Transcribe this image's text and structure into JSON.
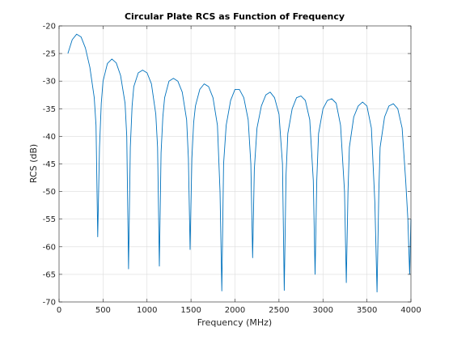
{
  "chart_data": {
    "type": "line",
    "title": "Circular Plate RCS as Function of Frequency",
    "xlabel": "Frequency (MHz)",
    "ylabel": "RCS (dB)",
    "xlim": [
      0,
      4000
    ],
    "ylim": [
      -70,
      -20
    ],
    "xticks": [
      0,
      500,
      1000,
      1500,
      2000,
      2500,
      3000,
      3500,
      4000
    ],
    "yticks": [
      -20,
      -25,
      -30,
      -35,
      -40,
      -45,
      -50,
      -55,
      -60,
      -65,
      -70
    ],
    "grid": true,
    "legend": "none",
    "series": [
      {
        "color": "#0072BD",
        "x": [
          100,
          150,
          200,
          250,
          300,
          350,
          400,
          420,
          440,
          460,
          480,
          500,
          550,
          600,
          650,
          700,
          750,
          770,
          790,
          810,
          830,
          850,
          900,
          950,
          1000,
          1050,
          1100,
          1120,
          1140,
          1160,
          1180,
          1200,
          1250,
          1300,
          1350,
          1400,
          1450,
          1470,
          1490,
          1510,
          1530,
          1550,
          1600,
          1650,
          1700,
          1750,
          1800,
          1830,
          1850,
          1870,
          1900,
          1950,
          2000,
          2050,
          2100,
          2150,
          2180,
          2200,
          2220,
          2250,
          2300,
          2350,
          2400,
          2450,
          2500,
          2540,
          2560,
          2580,
          2600,
          2650,
          2700,
          2750,
          2800,
          2850,
          2890,
          2910,
          2930,
          2950,
          3000,
          3050,
          3100,
          3150,
          3200,
          3245,
          3265,
          3285,
          3300,
          3350,
          3400,
          3450,
          3500,
          3550,
          3590,
          3615,
          3635,
          3650,
          3700,
          3750,
          3800,
          3850,
          3900,
          3940,
          3965,
          3985,
          4000
        ],
        "y": [
          -25,
          -22.5,
          -21.5,
          -22,
          -24,
          -27.5,
          -33,
          -38,
          -58.2,
          -42,
          -34,
          -30,
          -26.8,
          -26,
          -26.7,
          -29,
          -34,
          -40,
          -64,
          -42,
          -34.5,
          -31,
          -28.5,
          -28,
          -28.5,
          -30.5,
          -36,
          -42,
          -63.5,
          -43,
          -36.5,
          -33,
          -30,
          -29.5,
          -30,
          -32,
          -37,
          -44,
          -60.5,
          -44,
          -37.5,
          -34.5,
          -31.5,
          -30.5,
          -31,
          -33,
          -38,
          -50,
          -68,
          -45,
          -38,
          -33.5,
          -31.5,
          -31.5,
          -33,
          -37,
          -45,
          -62,
          -46,
          -38.5,
          -34.5,
          -32.5,
          -32,
          -33,
          -36,
          -45,
          -67.9,
          -47,
          -39.5,
          -35,
          -33,
          -32.7,
          -33.5,
          -37,
          -48,
          -65,
          -48,
          -39.5,
          -35,
          -33.5,
          -33.2,
          -34,
          -38,
          -50,
          -66.5,
          -50,
          -42,
          -36.5,
          -34.5,
          -33.8,
          -34.5,
          -38.5,
          -52,
          -68.2,
          -50,
          -42,
          -36.5,
          -34.5,
          -34.1,
          -35,
          -38.5,
          -48,
          -55,
          -65,
          -55
        ]
      }
    ]
  }
}
